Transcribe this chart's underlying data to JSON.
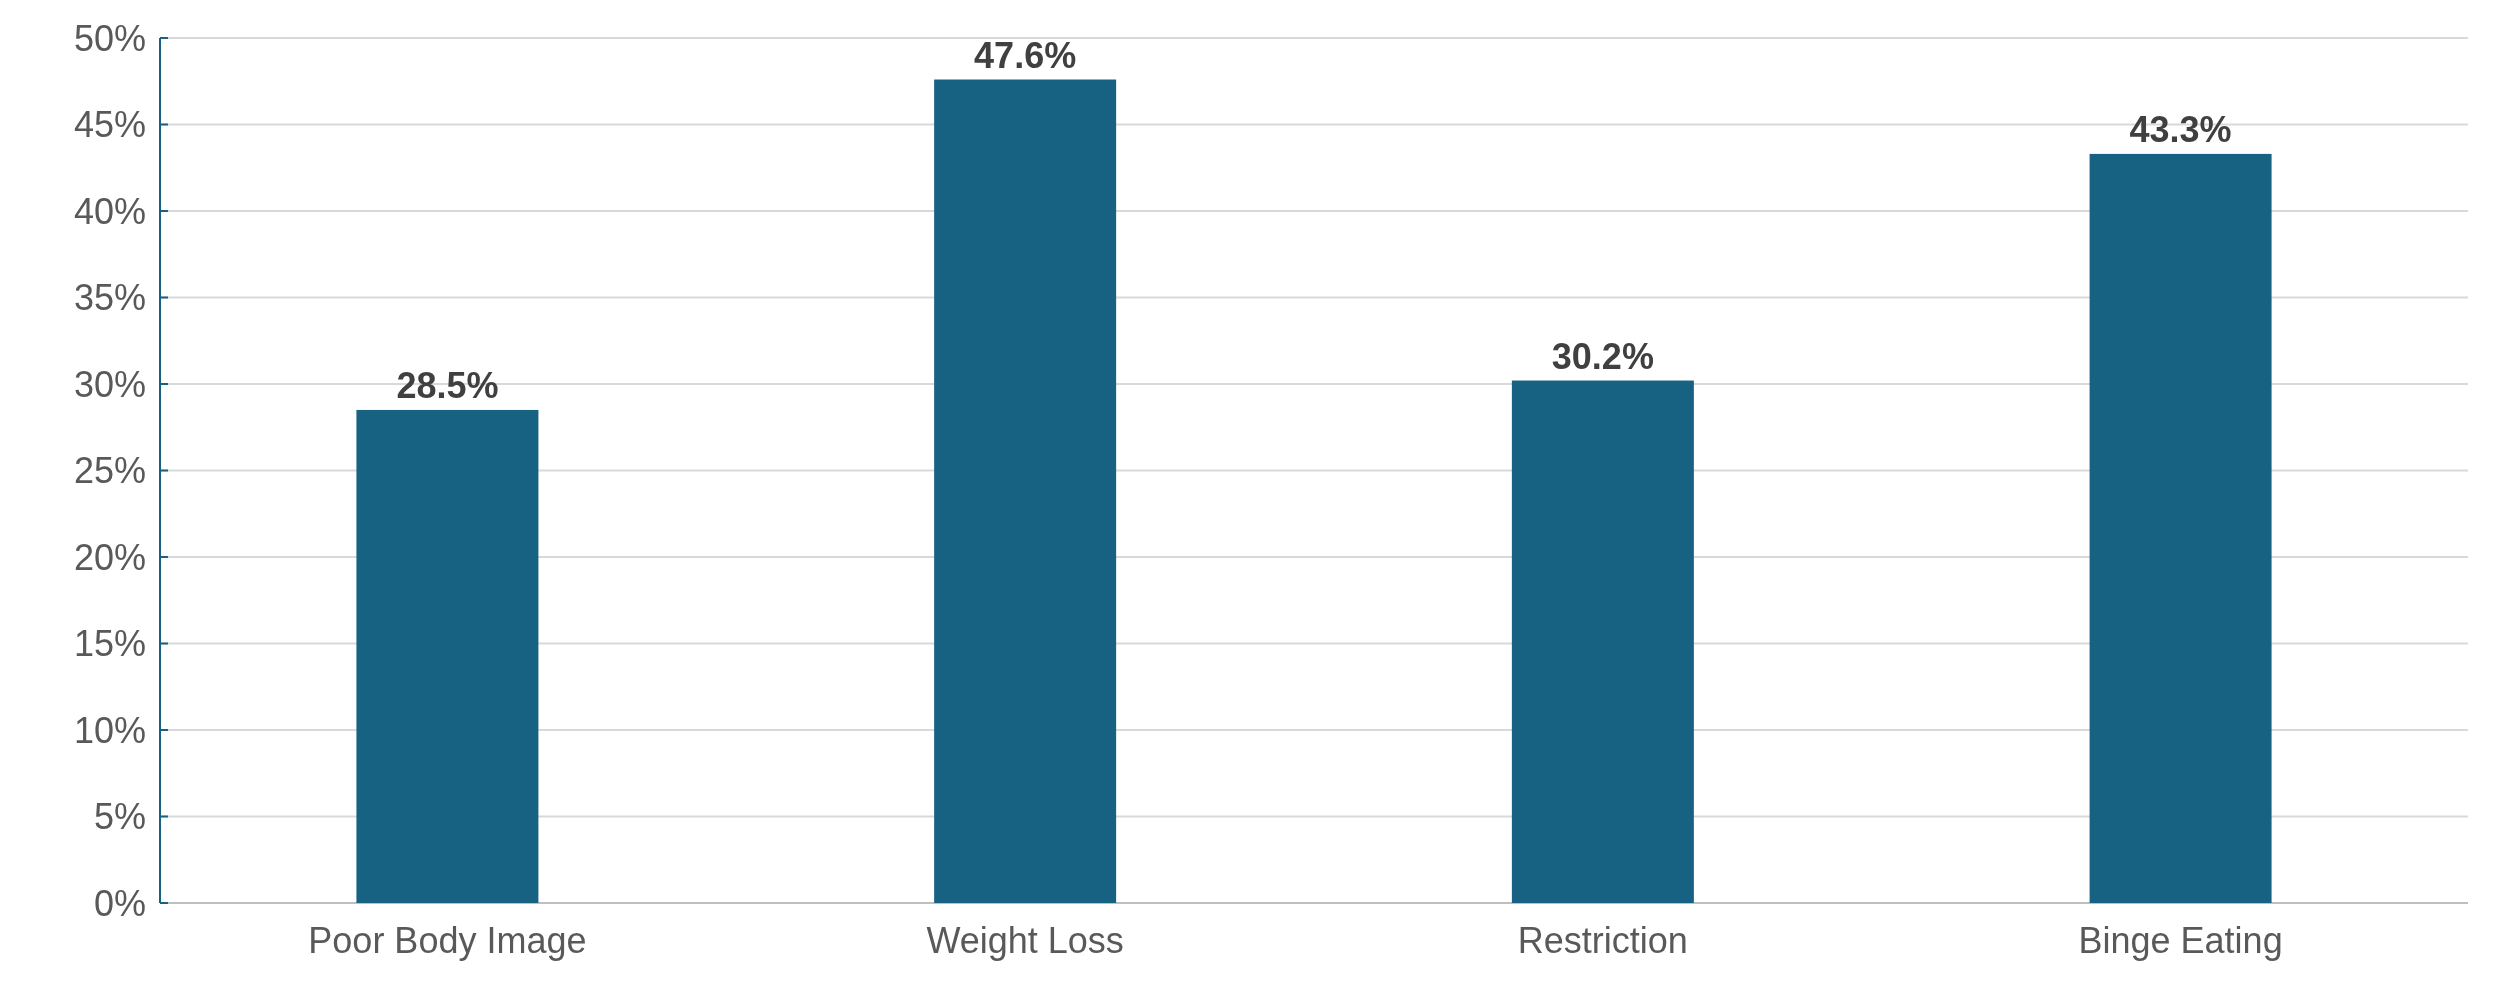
{
  "chart_data": {
    "type": "bar",
    "categories": [
      "Poor Body Image",
      "Weight Loss",
      "Restriction",
      "Binge Eating"
    ],
    "values": [
      28.5,
      47.6,
      30.2,
      43.3
    ],
    "color": "#176183",
    "value_labels": [
      "28.5%",
      "47.6%",
      "30.2%",
      "43.3%"
    ],
    "ylim": [
      0,
      50
    ],
    "yticks": [
      {
        "value": 0,
        "label": "0%"
      },
      {
        "value": 5,
        "label": "5%"
      },
      {
        "value": 10,
        "label": "10%"
      },
      {
        "value": 15,
        "label": "15%"
      },
      {
        "value": 20,
        "label": "20%"
      },
      {
        "value": 25,
        "label": "25%"
      },
      {
        "value": 30,
        "label": "30%"
      },
      {
        "value": 35,
        "label": "35%"
      },
      {
        "value": 40,
        "label": "40%"
      },
      {
        "value": 45,
        "label": "45%"
      },
      {
        "value": 50,
        "label": "50%"
      }
    ],
    "grid": "y"
  }
}
